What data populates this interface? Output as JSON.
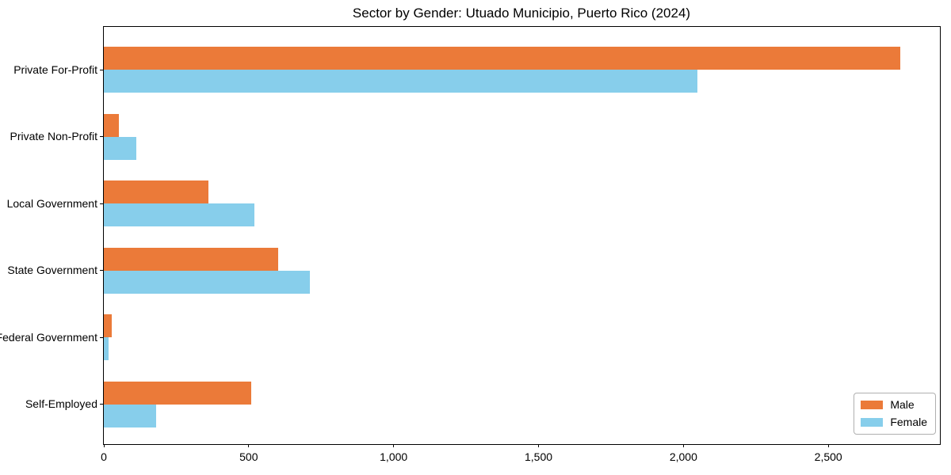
{
  "chart": {
    "title": "Sector by Gender: Utuado Municipio, Puerto Rico (2024)"
  },
  "chart_data": {
    "type": "bar",
    "orientation": "horizontal",
    "title": "Sector by Gender: Utuado Municipio, Puerto Rico (2024)",
    "xlabel": "",
    "ylabel": "",
    "categories": [
      "Private For-Profit",
      "Private Non-Profit",
      "Local Government",
      "State Government",
      "Federal Government",
      "Self-Employed"
    ],
    "series": [
      {
        "name": "Male",
        "color": "#EB7A39",
        "values": [
          2748,
          53,
          360,
          601,
          27,
          508
        ]
      },
      {
        "name": "Female",
        "color": "#87CEEB",
        "values": [
          2048,
          113,
          520,
          712,
          16,
          180
        ]
      }
    ],
    "xlim": [
      0,
      2885
    ],
    "x_ticks": [
      0,
      500,
      1000,
      1500,
      2000,
      2500
    ],
    "x_tick_labels": [
      "0",
      "500",
      "1,000",
      "1,500",
      "2,000",
      "2,500"
    ],
    "grid": false,
    "legend_position": "lower right",
    "frame_color": "#000000",
    "background_color": "#ffffff"
  }
}
